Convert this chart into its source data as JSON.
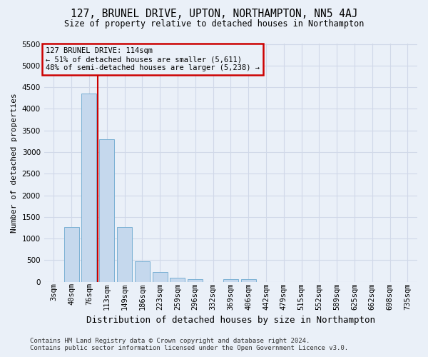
{
  "title": "127, BRUNEL DRIVE, UPTON, NORTHAMPTON, NN5 4AJ",
  "subtitle": "Size of property relative to detached houses in Northampton",
  "xlabel": "Distribution of detached houses by size in Northampton",
  "ylabel": "Number of detached properties",
  "footer_line1": "Contains HM Land Registry data © Crown copyright and database right 2024.",
  "footer_line2": "Contains public sector information licensed under the Open Government Licence v3.0.",
  "annotation_line1": "127 BRUNEL DRIVE: 114sqm",
  "annotation_line2": "← 51% of detached houses are smaller (5,611)",
  "annotation_line3": "48% of semi-detached houses are larger (5,238) →",
  "bar_color": "#c5d8ed",
  "bar_edge_color": "#7ab0d4",
  "red_line_color": "#cc0000",
  "annotation_box_color": "#cc0000",
  "grid_color": "#d0d8e8",
  "background_color": "#eaf0f8",
  "categories": [
    "3sqm",
    "40sqm",
    "76sqm",
    "113sqm",
    "149sqm",
    "186sqm",
    "223sqm",
    "259sqm",
    "296sqm",
    "332sqm",
    "369sqm",
    "406sqm",
    "442sqm",
    "479sqm",
    "515sqm",
    "552sqm",
    "589sqm",
    "625sqm",
    "662sqm",
    "698sqm",
    "735sqm"
  ],
  "values": [
    0,
    1260,
    4350,
    3300,
    1260,
    480,
    220,
    90,
    60,
    0,
    60,
    60,
    0,
    0,
    0,
    0,
    0,
    0,
    0,
    0,
    0
  ],
  "ylim": [
    0,
    5500
  ],
  "yticks": [
    0,
    500,
    1000,
    1500,
    2000,
    2500,
    3000,
    3500,
    4000,
    4500,
    5000,
    5500
  ],
  "red_line_x": 2.5,
  "title_fontsize": 10.5,
  "subtitle_fontsize": 8.5,
  "ylabel_fontsize": 8,
  "xlabel_fontsize": 9,
  "tick_fontsize": 7.5,
  "annotation_fontsize": 7.5,
  "footer_fontsize": 6.5
}
